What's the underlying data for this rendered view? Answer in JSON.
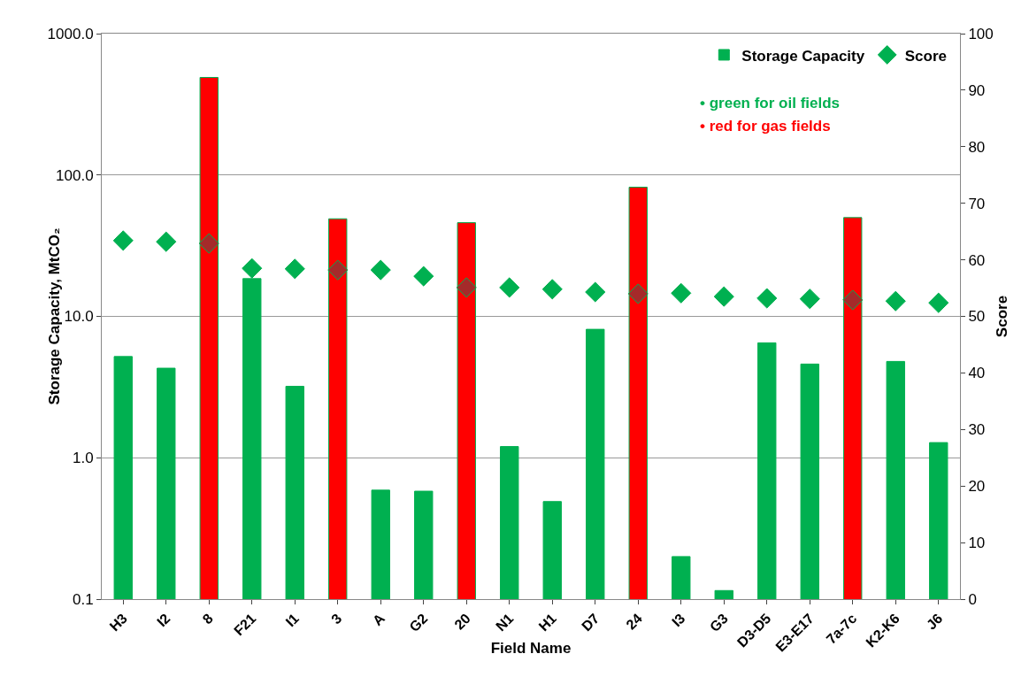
{
  "chart_data": {
    "type": "bar",
    "xlabel": "Field Name",
    "ylabel": "Storage Capacity, MtCO₂",
    "y2label": "Score",
    "categories": [
      "H3",
      "I2",
      "8",
      "F21",
      "I1",
      "3",
      "A",
      "G2",
      "20",
      "N1",
      "H1",
      "D7",
      "24",
      "I3",
      "G3",
      "D3-D5",
      "E3-E17",
      "7a-7c",
      "K2-K6",
      "J6"
    ],
    "series": [
      {
        "name": "Storage Capacity",
        "color": "#00b050",
        "colors": [
          "#00b050",
          "#00b050",
          "#ff0000",
          "#00b050",
          "#00b050",
          "#ff0000",
          "#00b050",
          "#00b050",
          "#ff0000",
          "#00b050",
          "#00b050",
          "#00b050",
          "#ff0000",
          "#00b050",
          "#00b050",
          "#00b050",
          "#00b050",
          "#ff0000",
          "#00b050",
          "#00b050"
        ],
        "values": [
          5.2,
          4.3,
          490,
          18.5,
          3.2,
          49,
          0.59,
          0.58,
          46,
          1.2,
          0.49,
          8.1,
          82,
          0.2,
          0.115,
          6.5,
          4.6,
          50,
          4.8,
          1.28
        ]
      },
      {
        "name": "Score",
        "type": "scatter",
        "axis": "y2",
        "marker": "diamond",
        "color": "#00b050",
        "colors": [
          "#00b050",
          "#00b050",
          "#a52a2a",
          "#00b050",
          "#00b050",
          "#a52a2a",
          "#00b050",
          "#00b050",
          "#a52a2a",
          "#00b050",
          "#00b050",
          "#00b050",
          "#a52a2a",
          "#00b050",
          "#00b050",
          "#00b050",
          "#00b050",
          "#a52a2a",
          "#00b050",
          "#00b050"
        ],
        "values": [
          63.4,
          63.2,
          62.9,
          58.5,
          58.4,
          58.2,
          58.2,
          57.1,
          55.1,
          55.1,
          54.8,
          54.3,
          54.0,
          54.1,
          53.5,
          53.2,
          53.1,
          52.9,
          52.7,
          52.4
        ]
      }
    ],
    "log": "y",
    "ylim": [
      0.1,
      1000
    ],
    "yticks": [
      0.1,
      {
        "value": 1,
        "label": "1.0"
      },
      {
        "value": 10,
        "label": "10.0"
      },
      {
        "value": 100,
        "label": "100.0"
      },
      {
        "value": 1000,
        "label": "1000.0"
      }
    ],
    "y2lim": [
      0,
      100
    ],
    "y2ticks": [
      0,
      10,
      20,
      30,
      40,
      50,
      60,
      70,
      80,
      90,
      100
    ],
    "grid": "y",
    "legend": "top right",
    "annotations": [
      "• green for oil fields",
      "• red for gas fields"
    ]
  }
}
